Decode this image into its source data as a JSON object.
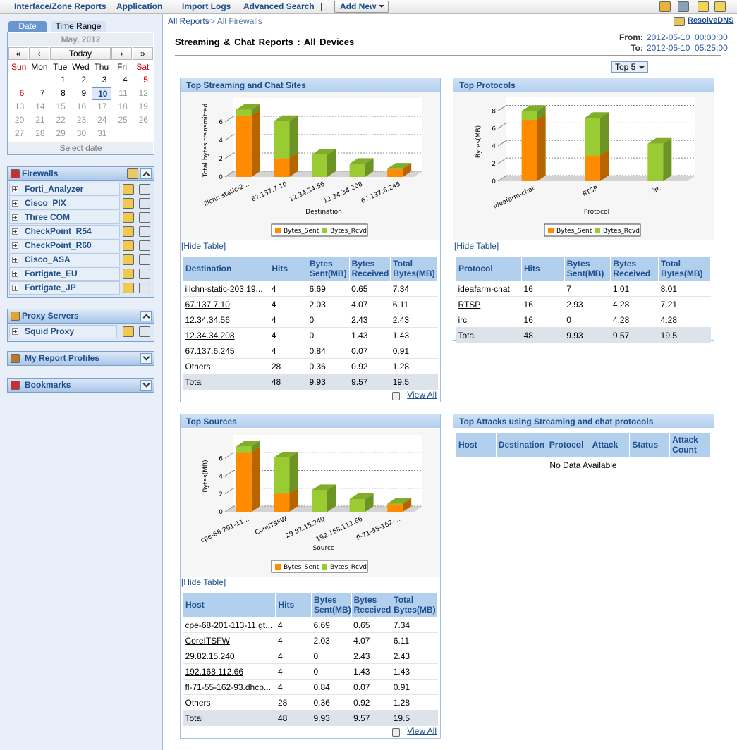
{
  "nav": {
    "items": [
      "Interface/Zone Reports",
      "Application",
      "Import Logs",
      "Advanced Search"
    ],
    "add_new": "Add New"
  },
  "calendar": {
    "tabs": [
      "Date",
      "Time Range"
    ],
    "month": "May, 2012",
    "controls": [
      "«",
      "‹",
      "Today",
      "›",
      "»"
    ],
    "weekdays": [
      "Sun",
      "Mon",
      "Tue",
      "Wed",
      "Thu",
      "Fri",
      "Sat"
    ],
    "weeks": [
      [
        null,
        null,
        1,
        2,
        3,
        4,
        5
      ],
      [
        6,
        7,
        8,
        9,
        10,
        11,
        12
      ],
      [
        13,
        14,
        15,
        16,
        17,
        18,
        19
      ],
      [
        20,
        21,
        22,
        23,
        24,
        25,
        26
      ],
      [
        27,
        28,
        29,
        30,
        31,
        null,
        null
      ]
    ],
    "selected_date": 10,
    "footer": "Select date"
  },
  "sidebar": {
    "sections": [
      {
        "title": "Firewalls",
        "items": [
          "Forti_Analyzer",
          "Cisco_PIX",
          "Three COM",
          "CheckPoint_R54",
          "CheckPoint_R60",
          "Cisco_ASA",
          "Fortigate_EU",
          "Fortigate_JP"
        ]
      },
      {
        "title": "Proxy Servers",
        "items": [
          "Squid Proxy"
        ]
      },
      {
        "title": "My Report Profiles"
      },
      {
        "title": "Bookmarks"
      }
    ]
  },
  "header": {
    "breadcrumb": [
      "All Reports",
      ">> All Firewalls"
    ],
    "resolve": "ResolveDNS",
    "title": "Streaming & Chat Reports : All Devices",
    "from_label": "From:",
    "from": "2012-05-10  00:00:00",
    "to_label": "To:",
    "to": "2012-05-10  05:25:00",
    "top_n": "Top 5"
  },
  "panels": [
    {
      "title": "Top Streaming and Chat Sites",
      "chart": {
        "type": "bar",
        "stacked": true,
        "ylabel": "Total bytes transmitted",
        "xlabel": "Destination",
        "categories": [
          "illchn-static-2...",
          "67.137.7.10",
          "12.34.34.56",
          "12.34.34.208",
          "67.137.6.245"
        ],
        "series": [
          {
            "name": "Bytes_Sent",
            "color": "#ff8c00",
            "values": [
              6.69,
              2.03,
              0,
              0,
              0.84
            ]
          },
          {
            "name": "Bytes_Rcvd",
            "color": "#99cc33",
            "values": [
              0.65,
              4.07,
              2.43,
              1.43,
              0.07
            ]
          }
        ],
        "ylim": [
          0,
          8
        ],
        "yticks": [
          0,
          2,
          4,
          6
        ],
        "grid": true
      },
      "hide_table": "[Hide Table]",
      "table": {
        "columns": [
          "Destination",
          "Hits",
          "Bytes Sent(MB)",
          "Bytes Received",
          "Total Bytes(MB)"
        ],
        "rows": [
          [
            "illchn-static-203.19...",
            "4",
            "6.69",
            "0.65",
            "7.34"
          ],
          [
            "67.137.7.10",
            "4",
            "2.03",
            "4.07",
            "6.11"
          ],
          [
            "12.34.34.56",
            "4",
            "0",
            "2.43",
            "2.43"
          ],
          [
            "12.34.34.208",
            "4",
            "0",
            "1.43",
            "1.43"
          ],
          [
            "67.137.6.245",
            "4",
            "0.84",
            "0.07",
            "0.91"
          ]
        ],
        "others": [
          "Others",
          "28",
          "0.36",
          "0.92",
          "1.28"
        ],
        "total": [
          "Total",
          "48",
          "9.93",
          "9.57",
          "19.5"
        ]
      },
      "view_all": "View All"
    },
    {
      "title": "Top Protocols",
      "chart": {
        "type": "bar",
        "stacked": true,
        "ylabel": "Bytes(MB)",
        "xlabel": "Protocol",
        "categories": [
          "ideafarm-chat",
          "RTSP",
          "irc"
        ],
        "series": [
          {
            "name": "Bytes_Sent",
            "color": "#ff8c00",
            "values": [
              7,
              2.93,
              0
            ]
          },
          {
            "name": "Bytes_Rcvd",
            "color": "#99cc33",
            "values": [
              1.01,
              4.28,
              4.28
            ]
          }
        ],
        "ylim": [
          0,
          9
        ],
        "yticks": [
          0,
          2,
          4,
          6,
          8
        ],
        "grid": true
      },
      "hide_table": "[Hide Table]",
      "table": {
        "columns": [
          "Protocol",
          "Hits",
          "Bytes Sent(MB)",
          "Bytes Received",
          "Total Bytes(MB)"
        ],
        "rows": [
          [
            "ideafarm-chat",
            "16",
            "7",
            "1.01",
            "8.01"
          ],
          [
            "RTSP",
            "16",
            "2.93",
            "4.28",
            "7.21"
          ],
          [
            "irc",
            "16",
            "0",
            "4.28",
            "4.28"
          ]
        ],
        "total": [
          "Total",
          "48",
          "9.93",
          "9.57",
          "19.5"
        ]
      }
    },
    {
      "title": "Top Sources",
      "chart": {
        "type": "bar",
        "stacked": true,
        "ylabel": "Bytes(MB)",
        "xlabel": "Source",
        "categories": [
          "cpe-68-201-11...",
          "CoreITSFW",
          "29.82.15.240",
          "192.168.112.66",
          "fl-71-55-162-..."
        ],
        "series": [
          {
            "name": "Bytes_Sent",
            "color": "#ff8c00",
            "values": [
              6.69,
              2.03,
              0,
              0,
              0.84
            ]
          },
          {
            "name": "Bytes_Rcvd",
            "color": "#99cc33",
            "values": [
              0.65,
              4.07,
              2.43,
              1.43,
              0.07
            ]
          }
        ],
        "ylim": [
          0,
          8
        ],
        "yticks": [
          0,
          2,
          4,
          6
        ],
        "grid": true
      },
      "hide_table": "[Hide Table]",
      "table": {
        "columns": [
          "Host",
          "Hits",
          "Bytes Sent(MB)",
          "Bytes Received",
          "Total Bytes(MB)"
        ],
        "rows": [
          [
            "cpe-68-201-113-11.gt...",
            "4",
            "6.69",
            "0.65",
            "7.34"
          ],
          [
            "CoreITSFW",
            "4",
            "2.03",
            "4.07",
            "6.11"
          ],
          [
            "29.82.15.240",
            "4",
            "0",
            "2.43",
            "2.43"
          ],
          [
            "192.168.112.66",
            "4",
            "0",
            "1.43",
            "1.43"
          ],
          [
            "fl-71-55-162-93.dhcp...",
            "4",
            "0.84",
            "0.07",
            "0.91"
          ]
        ],
        "others": [
          "Others",
          "28",
          "0.36",
          "0.92",
          "1.28"
        ],
        "total": [
          "Total",
          "48",
          "9.93",
          "9.57",
          "19.5"
        ]
      },
      "view_all": "View All"
    },
    {
      "title": "Top Attacks using Streaming and chat protocols",
      "table": {
        "columns": [
          "Host",
          "Destination",
          "Protocol",
          "Attack",
          "Status",
          "Attack Count"
        ],
        "empty": "No Data Available"
      }
    }
  ]
}
